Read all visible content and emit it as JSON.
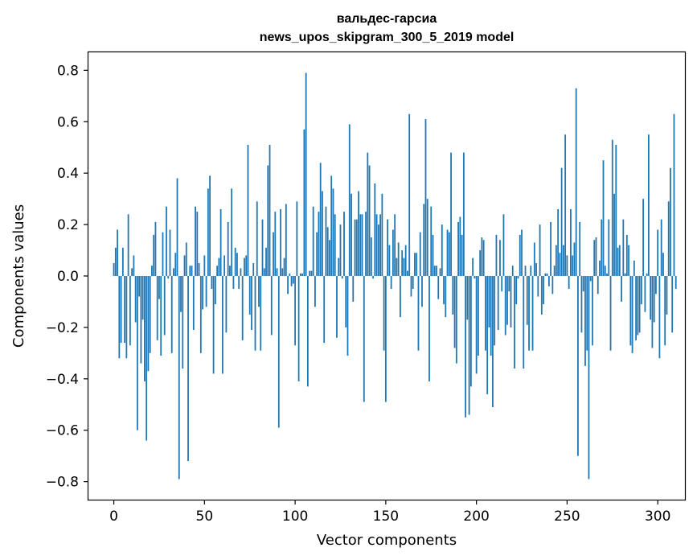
{
  "chart_data": {
    "type": "bar",
    "title_line1": "вальдес-гарсиа",
    "title_line2": "news_upos_skipgram_300_5_2019 model",
    "xlabel": "Vector components",
    "ylabel": "Components values",
    "xlim": [
      -14,
      315
    ],
    "ylim": [
      -0.87,
      0.87
    ],
    "xticks": [
      0,
      50,
      100,
      150,
      200,
      250,
      300
    ],
    "xtick_labels": [
      "0",
      "50",
      "100",
      "150",
      "200",
      "250",
      "300"
    ],
    "yticks": [
      0.8,
      0.6,
      0.4,
      0.2,
      0.0,
      -0.2,
      -0.4,
      -0.6,
      -0.8
    ],
    "ytick_labels": [
      "0.8",
      "0.6",
      "0.4",
      "0.2",
      "0.0",
      "−0.2",
      "−0.4",
      "−0.6",
      "−0.8"
    ],
    "bar_color": "#1f77b4",
    "values": [
      0.05,
      0.11,
      0.18,
      -0.32,
      -0.26,
      0.11,
      -0.26,
      -0.32,
      0.24,
      -0.27,
      0.03,
      0.08,
      -0.18,
      -0.6,
      -0.08,
      -0.34,
      -0.17,
      -0.41,
      -0.64,
      -0.37,
      -0.3,
      0.04,
      0.16,
      0.21,
      -0.25,
      -0.09,
      -0.31,
      0.17,
      -0.23,
      0.27,
      -0.01,
      0.18,
      -0.3,
      0.03,
      0.09,
      0.38,
      -0.79,
      -0.14,
      -0.36,
      0.08,
      0.13,
      -0.72,
      0.04,
      0.04,
      -0.21,
      0.27,
      0.25,
      0.05,
      -0.3,
      -0.13,
      0.08,
      -0.12,
      0.34,
      0.39,
      -0.05,
      -0.38,
      -0.11,
      0.04,
      0.07,
      0.26,
      -0.38,
      0.08,
      -0.22,
      0.21,
      0.04,
      0.34,
      -0.05,
      0.11,
      0.09,
      -0.05,
      0.03,
      -0.25,
      0.07,
      0.08,
      0.51,
      -0.15,
      -0.21,
      0.05,
      -0.29,
      0.29,
      -0.12,
      -0.29,
      0.22,
      0.03,
      0.11,
      0.43,
      0.51,
      -0.23,
      0.17,
      0.25,
      0.03,
      -0.59,
      0.26,
      0.03,
      0.07,
      0.28,
      -0.07,
      0.01,
      -0.04,
      -0.03,
      -0.27,
      0.29,
      -0.41,
      0.01,
      0.01,
      0.57,
      0.79,
      -0.43,
      0.02,
      0.02,
      0.27,
      -0.12,
      0.17,
      0.25,
      0.44,
      0.33,
      -0.26,
      0.27,
      0.19,
      0.14,
      0.39,
      0.34,
      0.24,
      -0.24,
      0.07,
      0.2,
      -0.01,
      0.25,
      -0.2,
      -0.31,
      0.59,
      0.32,
      -0.1,
      0.22,
      0.22,
      0.33,
      0.24,
      0.24,
      -0.49,
      0.25,
      0.48,
      0.43,
      0.15,
      -0.01,
      0.36,
      0.24,
      0.2,
      0.24,
      0.32,
      -0.29,
      -0.49,
      0.22,
      0.12,
      -0.05,
      0.18,
      0.24,
      0.07,
      0.13,
      -0.16,
      0.1,
      0.07,
      0.12,
      0.02,
      0.63,
      -0.08,
      -0.05,
      0.09,
      0.09,
      -0.29,
      0.17,
      -0.12,
      0.28,
      0.61,
      0.3,
      -0.41,
      0.27,
      0.16,
      0.04,
      0.04,
      -0.09,
      0.03,
      0.2,
      -0.11,
      -0.16,
      0.18,
      0.17,
      0.48,
      -0.15,
      -0.28,
      -0.34,
      0.21,
      0.23,
      0.16,
      0.48,
      -0.55,
      -0.17,
      -0.54,
      -0.43,
      0.07,
      -0.01,
      -0.38,
      -0.31,
      0.1,
      0.15,
      0.14,
      -0.29,
      -0.46,
      -0.2,
      -0.31,
      -0.51,
      -0.27,
      0.16,
      -0.21,
      0.14,
      -0.06,
      0.24,
      -0.23,
      -0.19,
      -0.06,
      -0.2,
      0.04,
      -0.36,
      -0.11,
      -0.01,
      0.16,
      0.18,
      -0.36,
      0.04,
      -0.19,
      -0.29,
      0.04,
      -0.29,
      0.13,
      0.05,
      -0.08,
      0.2,
      -0.15,
      -0.11,
      0.01,
      0.01,
      -0.04,
      0.21,
      -0.07,
      0.04,
      0.12,
      0.26,
      0.09,
      0.42,
      0.12,
      0.55,
      0.08,
      -0.05,
      0.26,
      0.08,
      0.13,
      0.73,
      -0.7,
      0.21,
      -0.22,
      -0.06,
      -0.35,
      -0.29,
      -0.79,
      -0.02,
      -0.27,
      0.14,
      0.15,
      -0.07,
      0.06,
      0.22,
      0.45,
      0.04,
      0.01,
      0.22,
      -0.29,
      0.53,
      0.32,
      0.51,
      0.11,
      0.12,
      -0.1,
      0.22,
      0.01,
      0.16,
      0.12,
      -0.27,
      -0.3,
      0.06,
      -0.25,
      -0.23,
      -0.22,
      -0.11,
      0.3,
      -0.14,
      0.01,
      0.55,
      -0.17,
      -0.28,
      -0.18,
      -0.07,
      0.18,
      -0.32,
      0.22,
      0.09,
      -0.27,
      -0.15,
      0.29,
      0.42,
      -0.22,
      0.63,
      -0.05
    ]
  }
}
